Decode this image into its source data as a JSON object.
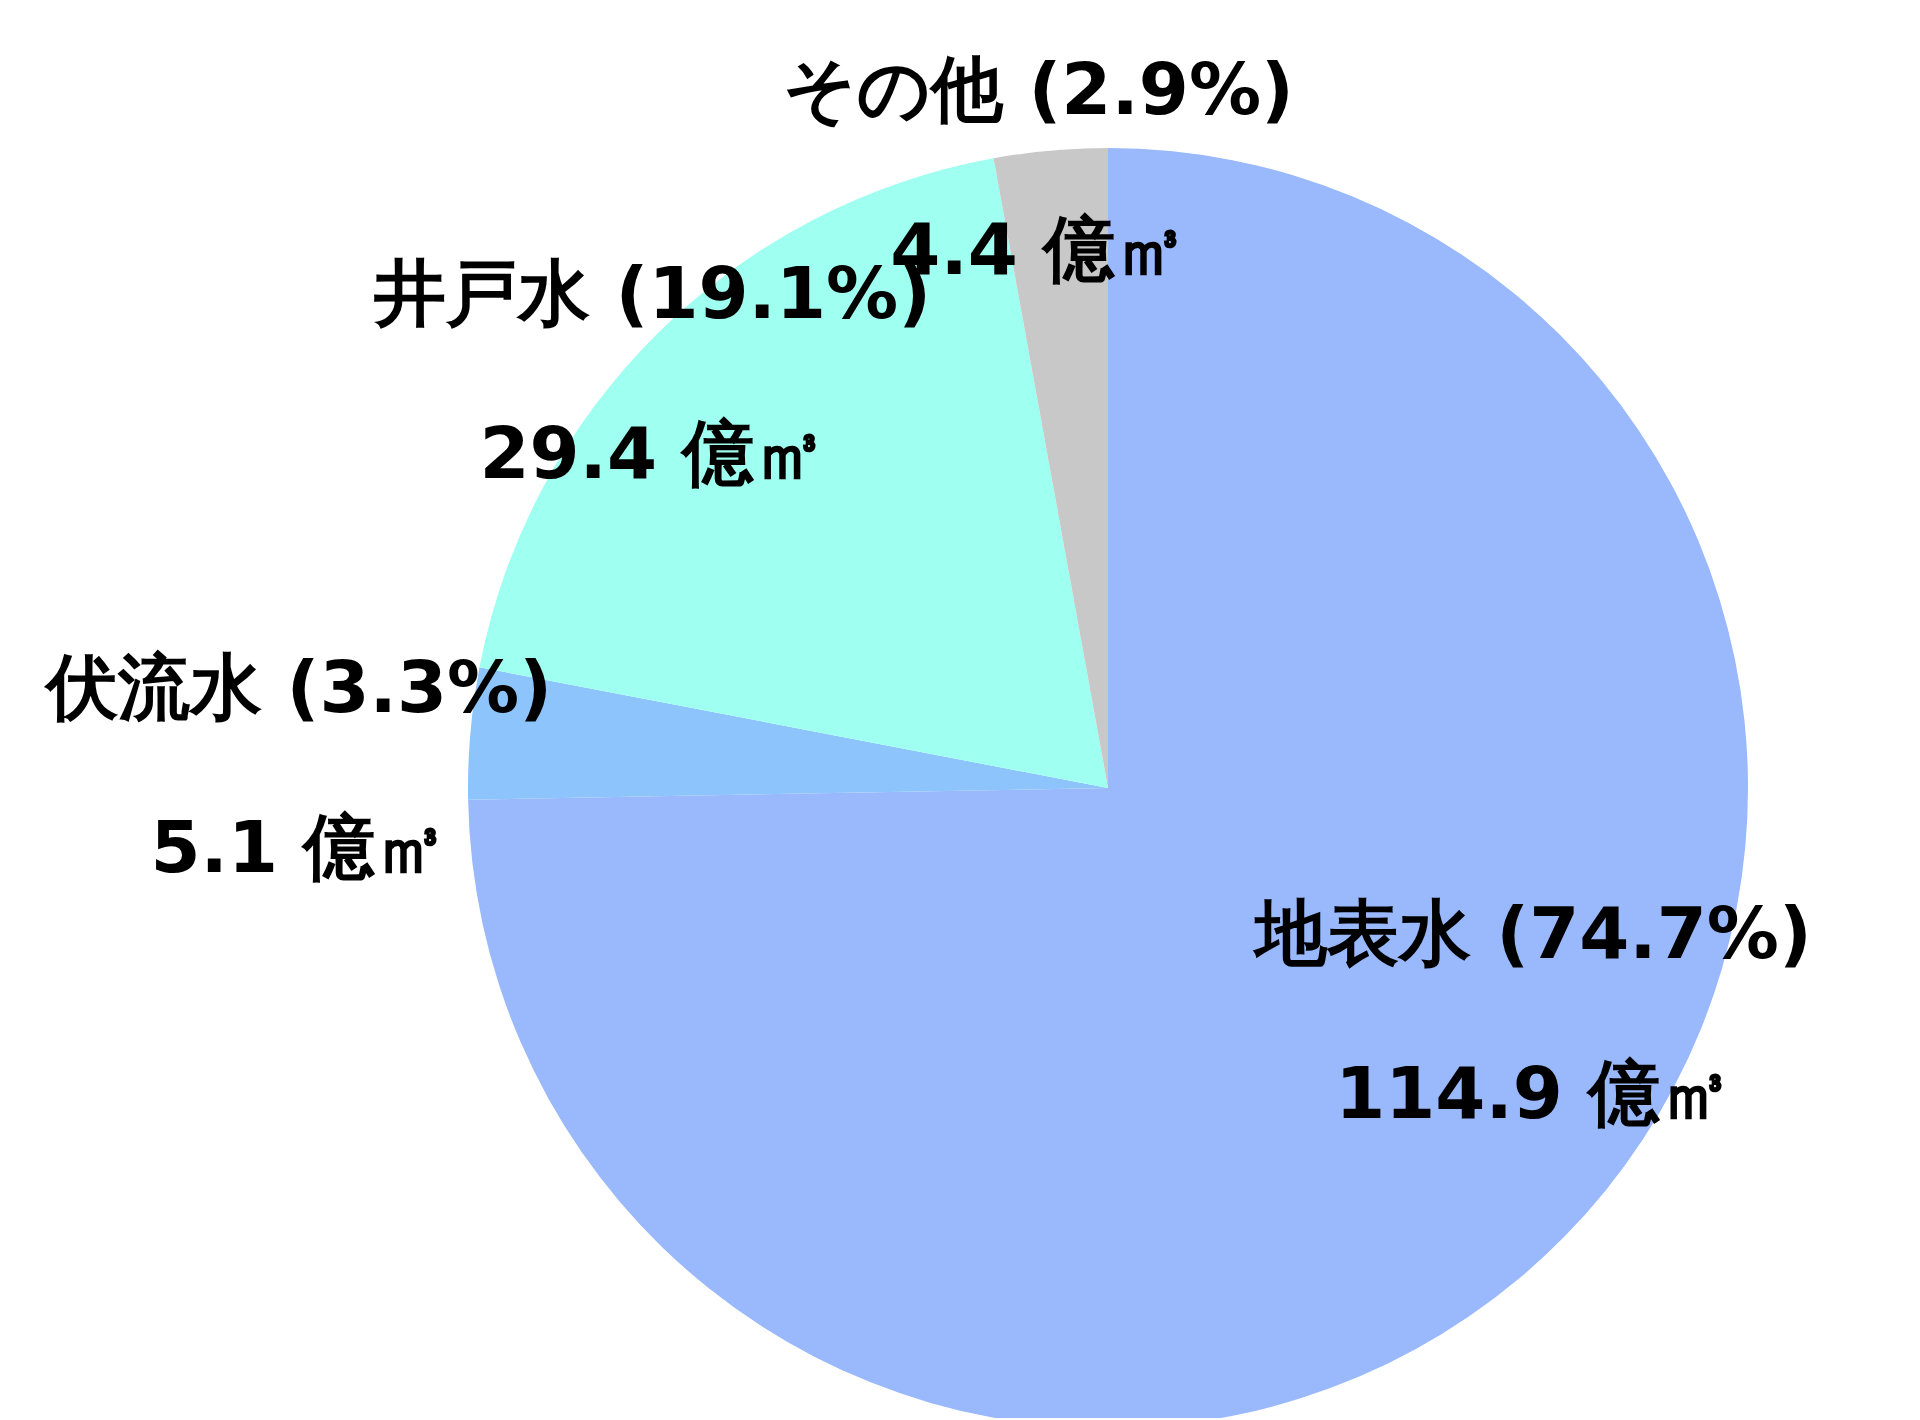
{
  "chart_data": {
    "type": "pie",
    "categories": [
      "地表水 (74.7%)",
      "伏流水 (3.3%)",
      "井戸水 (19.1%)",
      "その他 (2.9%)"
    ],
    "values": [
      114.9,
      5.1,
      29.4,
      4.4
    ],
    "value_labels": [
      "114.9 億㎥",
      "5.1 億㎥",
      "29.4 億㎥",
      "4.4 億㎥"
    ],
    "colors": [
      "#99b9fc",
      "#8cc4fb",
      "#9ffff0",
      "#c8c8c8"
    ]
  }
}
